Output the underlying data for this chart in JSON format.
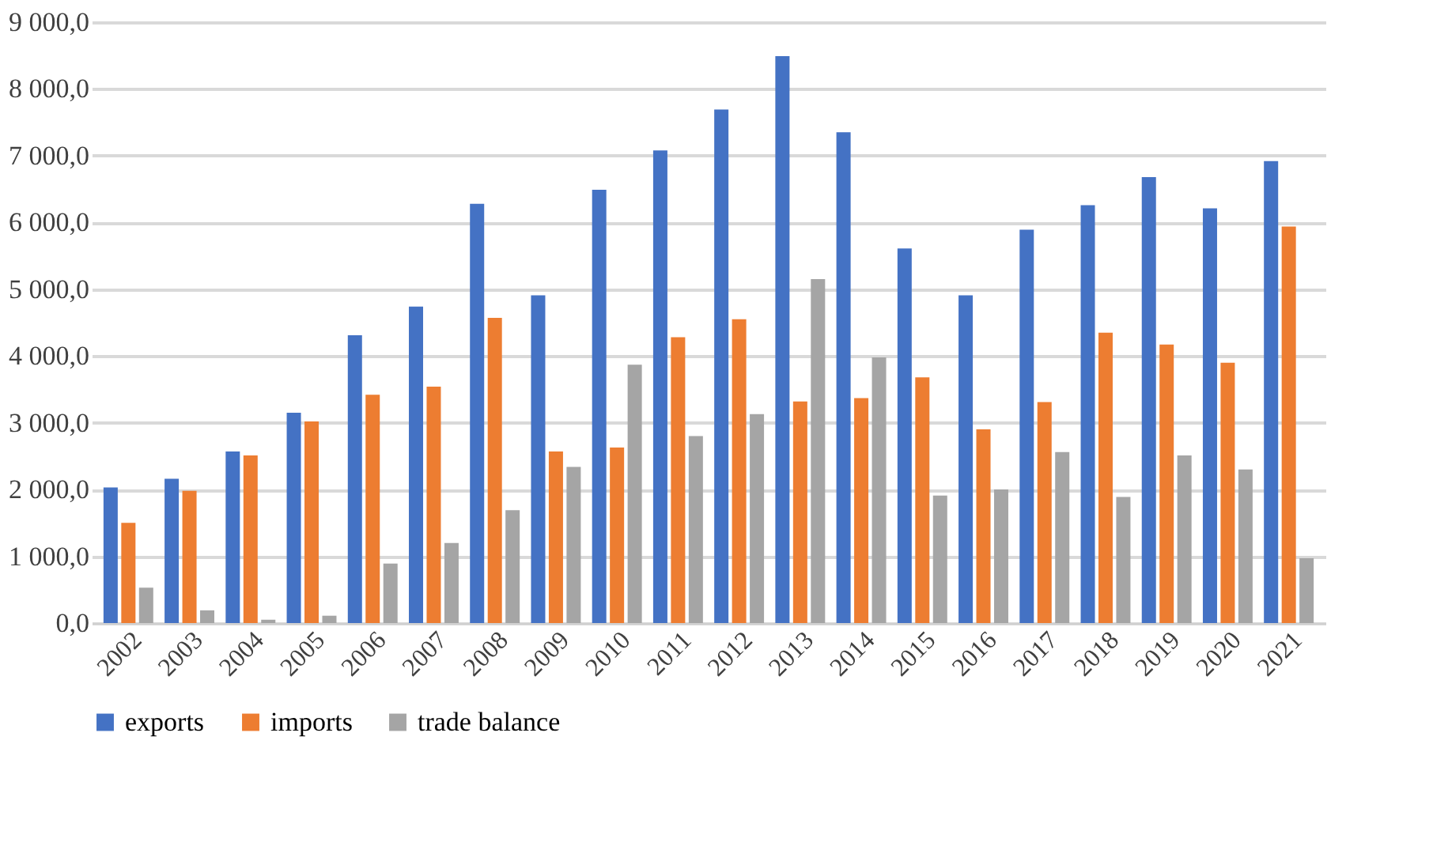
{
  "chart_data": {
    "type": "bar",
    "categories": [
      "2002",
      "2003",
      "2004",
      "2005",
      "2006",
      "2007",
      "2008",
      "2009",
      "2010",
      "2011",
      "2012",
      "2013",
      "2014",
      "2015",
      "2016",
      "2017",
      "2018",
      "2019",
      "2020",
      "2021"
    ],
    "series": [
      {
        "name": "exports",
        "color": "#4472c4",
        "values": [
          2030,
          2160,
          2570,
          3150,
          4310,
          4740,
          6280,
          4910,
          6490,
          7080,
          7690,
          8490,
          7350,
          5610,
          4910,
          5890,
          6260,
          6680,
          6210,
          6920
        ]
      },
      {
        "name": "imports",
        "color": "#ed7d31",
        "values": [
          1500,
          1980,
          2510,
          3020,
          3420,
          3540,
          4570,
          2570,
          2630,
          4280,
          4550,
          3320,
          3370,
          3680,
          2900,
          3310,
          4350,
          4170,
          3900,
          5940
        ]
      },
      {
        "name": "trade balance",
        "color": "#a5a5a5",
        "values": [
          530,
          190,
          50,
          110,
          890,
          1200,
          1690,
          2340,
          3870,
          2800,
          3130,
          5150,
          3980,
          1910,
          2000,
          2560,
          1890,
          2510,
          2300,
          970
        ]
      }
    ],
    "ylim": [
      0,
      9000
    ],
    "yticks": [
      {
        "value": 0,
        "label": "0,0"
      },
      {
        "value": 1000,
        "label": "1 000,0"
      },
      {
        "value": 2000,
        "label": "2 000,0"
      },
      {
        "value": 3000,
        "label": "3 000,0"
      },
      {
        "value": 4000,
        "label": "4 000,0"
      },
      {
        "value": 5000,
        "label": "5 000,0"
      },
      {
        "value": 6000,
        "label": "6 000,0"
      },
      {
        "value": 7000,
        "label": "7 000,0"
      },
      {
        "value": 8000,
        "label": "8 000,0"
      },
      {
        "value": 9000,
        "label": "9 000,0"
      }
    ],
    "grid": "y",
    "legend": "bottom"
  }
}
